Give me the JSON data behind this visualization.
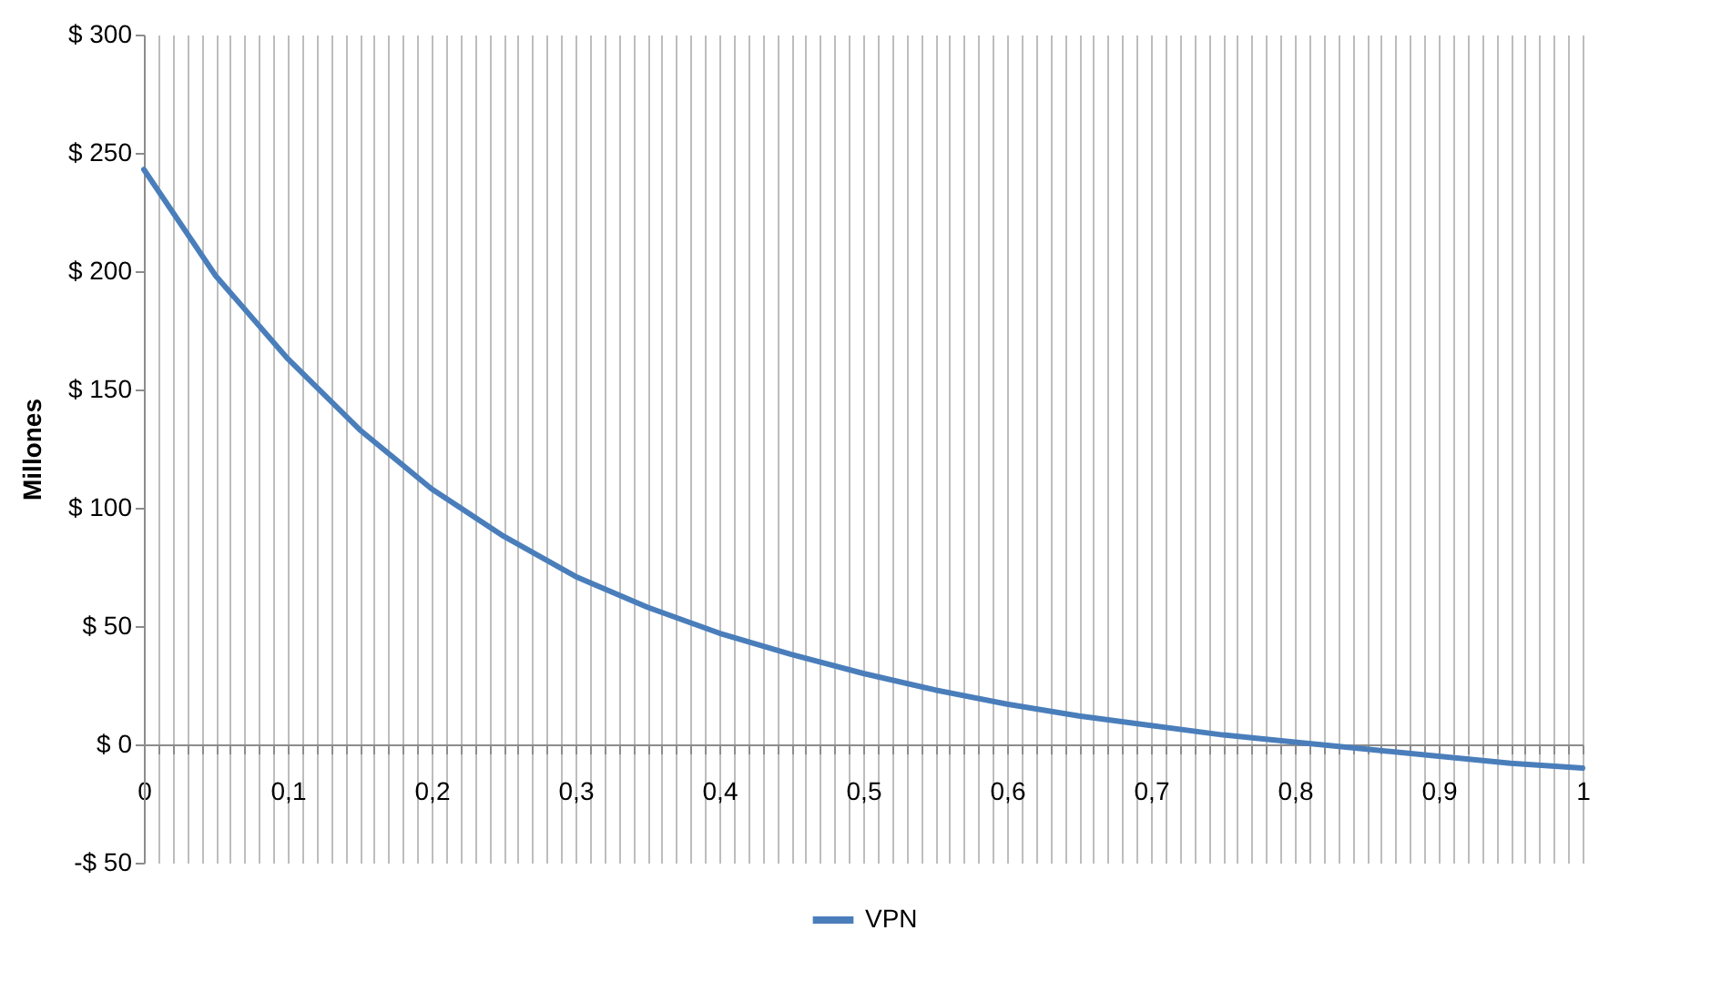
{
  "chart_data": {
    "type": "line",
    "ylabel": "Millones",
    "x": [
      0,
      0.05,
      0.1,
      0.15,
      0.2,
      0.25,
      0.3,
      0.35,
      0.4,
      0.45,
      0.5,
      0.55,
      0.6,
      0.65,
      0.7,
      0.75,
      0.8,
      0.85,
      0.9,
      0.95,
      1
    ],
    "series": [
      {
        "name": "VPN",
        "color": "#4a7ebb",
        "values": [
          243,
          198,
          163,
          133,
          108,
          88,
          71,
          58,
          47,
          38,
          30,
          23,
          17,
          12,
          8,
          4,
          1,
          -2,
          -5,
          -8,
          -10
        ]
      }
    ],
    "xlim": [
      0,
      1
    ],
    "xticks": [
      0,
      {
        "value": 0.01,
        "label": null
      },
      {
        "value": 0.02,
        "label": null
      },
      {
        "value": 0.03,
        "label": null
      },
      {
        "value": 0.04,
        "label": null
      },
      {
        "value": 0.05,
        "label": null
      },
      {
        "value": 0.06,
        "label": null
      },
      {
        "value": 0.07,
        "label": null
      },
      {
        "value": 0.08,
        "label": null
      },
      {
        "value": 0.09,
        "label": null
      },
      {
        "value": 0.1,
        "label": "0,1"
      },
      {
        "value": 0.11,
        "label": null
      },
      {
        "value": 0.12,
        "label": null
      },
      {
        "value": 0.13,
        "label": null
      },
      {
        "value": 0.14,
        "label": null
      },
      {
        "value": 0.15,
        "label": null
      },
      {
        "value": 0.16,
        "label": null
      },
      {
        "value": 0.17,
        "label": null
      },
      {
        "value": 0.18,
        "label": null
      },
      {
        "value": 0.19,
        "label": null
      },
      {
        "value": 0.2,
        "label": "0,2"
      },
      {
        "value": 0.21,
        "label": null
      },
      {
        "value": 0.22,
        "label": null
      },
      {
        "value": 0.23,
        "label": null
      },
      {
        "value": 0.24,
        "label": null
      },
      {
        "value": 0.25,
        "label": null
      },
      {
        "value": 0.26,
        "label": null
      },
      {
        "value": 0.27,
        "label": null
      },
      {
        "value": 0.28,
        "label": null
      },
      {
        "value": 0.29,
        "label": null
      },
      {
        "value": 0.3,
        "label": "0,3"
      },
      {
        "value": 0.31,
        "label": null
      },
      {
        "value": 0.32,
        "label": null
      },
      {
        "value": 0.33,
        "label": null
      },
      {
        "value": 0.34,
        "label": null
      },
      {
        "value": 0.35,
        "label": null
      },
      {
        "value": 0.36,
        "label": null
      },
      {
        "value": 0.37,
        "label": null
      },
      {
        "value": 0.38,
        "label": null
      },
      {
        "value": 0.39,
        "label": null
      },
      {
        "value": 0.4,
        "label": "0,4"
      },
      {
        "value": 0.41,
        "label": null
      },
      {
        "value": 0.42,
        "label": null
      },
      {
        "value": 0.43,
        "label": null
      },
      {
        "value": 0.44,
        "label": null
      },
      {
        "value": 0.45,
        "label": null
      },
      {
        "value": 0.46,
        "label": null
      },
      {
        "value": 0.47,
        "label": null
      },
      {
        "value": 0.48,
        "label": null
      },
      {
        "value": 0.49,
        "label": null
      },
      {
        "value": 0.5,
        "label": "0,5"
      },
      {
        "value": 0.51,
        "label": null
      },
      {
        "value": 0.52,
        "label": null
      },
      {
        "value": 0.53,
        "label": null
      },
      {
        "value": 0.54,
        "label": null
      },
      {
        "value": 0.55,
        "label": null
      },
      {
        "value": 0.56,
        "label": null
      },
      {
        "value": 0.57,
        "label": null
      },
      {
        "value": 0.58,
        "label": null
      },
      {
        "value": 0.59,
        "label": null
      },
      {
        "value": 0.6,
        "label": "0,6"
      },
      {
        "value": 0.61,
        "label": null
      },
      {
        "value": 0.62,
        "label": null
      },
      {
        "value": 0.63,
        "label": null
      },
      {
        "value": 0.64,
        "label": null
      },
      {
        "value": 0.65,
        "label": null
      },
      {
        "value": 0.66,
        "label": null
      },
      {
        "value": 0.67,
        "label": null
      },
      {
        "value": 0.68,
        "label": null
      },
      {
        "value": 0.69,
        "label": null
      },
      {
        "value": 0.7,
        "label": "0,7"
      },
      {
        "value": 0.71,
        "label": null
      },
      {
        "value": 0.72,
        "label": null
      },
      {
        "value": 0.73,
        "label": null
      },
      {
        "value": 0.74,
        "label": null
      },
      {
        "value": 0.75,
        "label": null
      },
      {
        "value": 0.76,
        "label": null
      },
      {
        "value": 0.77,
        "label": null
      },
      {
        "value": 0.78,
        "label": null
      },
      {
        "value": 0.79,
        "label": null
      },
      {
        "value": 0.8,
        "label": "0,8"
      },
      {
        "value": 0.81,
        "label": null
      },
      {
        "value": 0.82,
        "label": null
      },
      {
        "value": 0.83,
        "label": null
      },
      {
        "value": 0.84,
        "label": null
      },
      {
        "value": 0.85,
        "label": null
      },
      {
        "value": 0.86,
        "label": null
      },
      {
        "value": 0.87,
        "label": null
      },
      {
        "value": 0.88,
        "label": null
      },
      {
        "value": 0.89,
        "label": null
      },
      {
        "value": 0.9,
        "label": "0,9"
      },
      {
        "value": 0.91,
        "label": null
      },
      {
        "value": 0.92,
        "label": null
      },
      {
        "value": 0.93,
        "label": null
      },
      {
        "value": 0.94,
        "label": null
      },
      {
        "value": 0.95,
        "label": null
      },
      {
        "value": 0.96,
        "label": null
      },
      {
        "value": 0.97,
        "label": null
      },
      {
        "value": 0.98,
        "label": null
      },
      {
        "value": 0.99,
        "label": null
      },
      1
    ],
    "ylim": [
      -50,
      300
    ],
    "yticks": [
      {
        "value": -50,
        "label": "-$ 50"
      },
      {
        "value": 0,
        "label": "$ 0"
      },
      {
        "value": 50,
        "label": "$ 50"
      },
      {
        "value": 100,
        "label": "$ 100"
      },
      {
        "value": 150,
        "label": "$ 150"
      },
      {
        "value": 200,
        "label": "$ 200"
      },
      {
        "value": 250,
        "label": "$ 250"
      },
      {
        "value": 300,
        "label": "$ 300"
      }
    ],
    "grid": "x",
    "legend": "bottom",
    "marker": "none",
    "line_style": "solid"
  }
}
